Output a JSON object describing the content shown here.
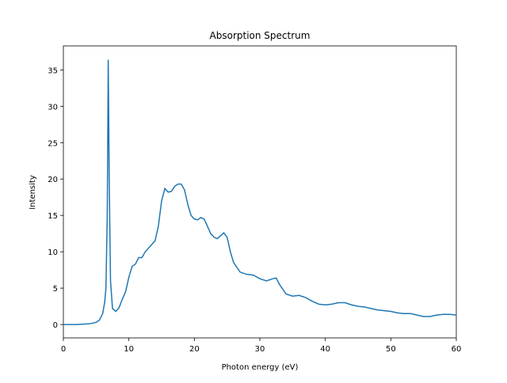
{
  "chart_data": {
    "type": "line",
    "title": "Absorption Spectrum",
    "x_label": "Photon energy (eV)",
    "y_label": "Intensity",
    "x": [
      0,
      1,
      2,
      3,
      4,
      5,
      5.5,
      6,
      6.3,
      6.5,
      6.7,
      6.85,
      7,
      7.2,
      7.5,
      8,
      8.5,
      9,
      9.5,
      10,
      10.5,
      11,
      11.5,
      12,
      12.5,
      13,
      13.5,
      14,
      14.5,
      15,
      15.5,
      16,
      16.5,
      17,
      17.5,
      18,
      18.5,
      19,
      19.5,
      20,
      20.5,
      21,
      21.5,
      22,
      22.5,
      23,
      23.5,
      24,
      24.5,
      25,
      25.5,
      26,
      27,
      28,
      29,
      30,
      31,
      32,
      32.5,
      33,
      34,
      35,
      36,
      37,
      38,
      39,
      40,
      41,
      42,
      43,
      44,
      45,
      46,
      47,
      48,
      49,
      50,
      51,
      52,
      53,
      54,
      55,
      56,
      57,
      58,
      59,
      60
    ],
    "series": [
      {
        "color": "#1f77b4",
        "values": [
          0,
          0,
          0,
          0.05,
          0.1,
          0.3,
          0.6,
          1.5,
          3,
          5,
          15,
          36.4,
          20,
          6,
          2.2,
          1.8,
          2.3,
          3.5,
          4.5,
          6.5,
          8,
          8.3,
          9.2,
          9.2,
          10,
          10.5,
          11,
          11.5,
          13.5,
          17,
          18.7,
          18.2,
          18.3,
          19,
          19.3,
          19.3,
          18.5,
          16.5,
          15,
          14.5,
          14.4,
          14.7,
          14.5,
          13.5,
          12.5,
          12,
          11.8,
          12.2,
          12.6,
          12,
          10,
          8.5,
          7.2,
          6.9,
          6.8,
          6.3,
          6,
          6.3,
          6.4,
          5.5,
          4.2,
          3.9,
          4,
          3.7,
          3.2,
          2.8,
          2.7,
          2.8,
          3,
          3,
          2.7,
          2.5,
          2.4,
          2.2,
          2,
          1.9,
          1.8,
          1.6,
          1.5,
          1.5,
          1.3,
          1.1,
          1.1,
          1.3,
          1.4,
          1.4,
          1.3
        ]
      }
    ],
    "xlim": [
      0,
      60
    ],
    "xticks": [
      0,
      10,
      20,
      30,
      40,
      50,
      60
    ],
    "ylim": [
      -1.84,
      38.3
    ],
    "yticks": [
      0,
      5,
      10,
      15,
      20,
      25,
      30,
      35
    ]
  }
}
